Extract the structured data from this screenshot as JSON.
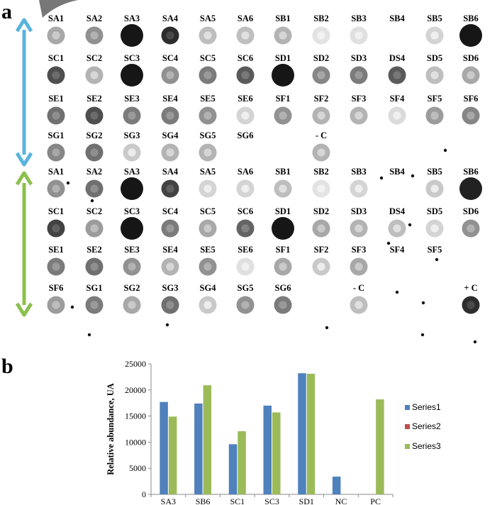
{
  "panels": {
    "a": "a",
    "b": "b"
  },
  "colors": {
    "series1": "#4f81bd",
    "series2": "#c0504d",
    "series3": "#9bbb59",
    "arrow_top": "#5ab4dc",
    "arrow_bottom": "#8cc04e"
  },
  "blot": {
    "blocks": [
      {
        "rows": [
          {
            "dots": [
              {
                "label": "SA1",
                "i": 0.35
              },
              {
                "label": "SA2",
                "i": 0.45
              },
              {
                "label": "SA3",
                "i": 1.0
              },
              {
                "label": "SA4",
                "i": 0.9
              },
              {
                "label": "SA5",
                "i": 0.25
              },
              {
                "label": "SA6",
                "i": 0.25
              },
              {
                "label": "SB1",
                "i": 0.3
              },
              {
                "label": "SB2",
                "i": 0.08
              },
              {
                "label": "SB3",
                "i": 0.1
              },
              {
                "label": "SB4",
                "i": 0.0
              },
              {
                "label": "SB5",
                "i": 0.15
              },
              {
                "label": "SB6",
                "i": 1.0
              }
            ]
          },
          {
            "dots": [
              {
                "label": "SC1",
                "i": 0.75
              },
              {
                "label": "SC2",
                "i": 0.3
              },
              {
                "label": "SC3",
                "i": 1.0
              },
              {
                "label": "SC4",
                "i": 0.45
              },
              {
                "label": "SC5",
                "i": 0.55
              },
              {
                "label": "SC6",
                "i": 0.7
              },
              {
                "label": "SD1",
                "i": 1.0
              },
              {
                "label": "SD2",
                "i": 0.5
              },
              {
                "label": "SD3",
                "i": 0.55
              },
              {
                "label": "DS4",
                "i": 0.7
              },
              {
                "label": "SD5",
                "i": 0.25
              },
              {
                "label": "SD6",
                "i": 0.35
              }
            ]
          },
          {
            "dots": [
              {
                "label": "SE1",
                "i": 0.6
              },
              {
                "label": "SE2",
                "i": 0.75
              },
              {
                "label": "SE3",
                "i": 0.55
              },
              {
                "label": "SE4",
                "i": 0.55
              },
              {
                "label": "SE5",
                "i": 0.45
              },
              {
                "label": "SE6",
                "i": 0.15
              },
              {
                "label": "SF1",
                "i": 0.45
              },
              {
                "label": "SF2",
                "i": 0.3
              },
              {
                "label": "SF3",
                "i": 0.3
              },
              {
                "label": "SF4",
                "i": 0.12
              },
              {
                "label": "SF5",
                "i": 0.4
              },
              {
                "label": "SF6",
                "i": 0.5
              }
            ]
          },
          {
            "dots": [
              {
                "label": "SG1",
                "i": 0.5
              },
              {
                "label": "SG2",
                "i": 0.6
              },
              {
                "label": "SG3",
                "i": 0.2
              },
              {
                "label": "SG4",
                "i": 0.3
              },
              {
                "label": "SG5",
                "i": 0.3
              },
              {
                "label": "SG6",
                "i": 0.0
              },
              {
                "label": "",
                "i": 0.0
              },
              {
                "label": "- C",
                "i": 0.3
              },
              {
                "label": "",
                "i": 0.0
              },
              {
                "label": "",
                "i": 0.0
              },
              {
                "label": "",
                "i": 0.0
              },
              {
                "label": "",
                "i": 0.0
              }
            ]
          }
        ]
      },
      {
        "rows": [
          {
            "dots": [
              {
                "label": "SA1",
                "i": 0.45
              },
              {
                "label": "SA2",
                "i": 0.6
              },
              {
                "label": "SA3",
                "i": 1.0
              },
              {
                "label": "SA4",
                "i": 0.8
              },
              {
                "label": "SA5",
                "i": 0.15
              },
              {
                "label": "SA6",
                "i": 0.15
              },
              {
                "label": "SB1",
                "i": 0.25
              },
              {
                "label": "SB2",
                "i": 0.08
              },
              {
                "label": "SB3",
                "i": 0.15
              },
              {
                "label": "SB4",
                "i": 0.0
              },
              {
                "label": "SB5",
                "i": 0.2
              },
              {
                "label": "SB6",
                "i": 0.95
              }
            ]
          },
          {
            "dots": [
              {
                "label": "SC1",
                "i": 0.8
              },
              {
                "label": "SC2",
                "i": 0.4
              },
              {
                "label": "SC3",
                "i": 1.0
              },
              {
                "label": "SC4",
                "i": 0.55
              },
              {
                "label": "SC5",
                "i": 0.35
              },
              {
                "label": "SC6",
                "i": 0.65
              },
              {
                "label": "SD1",
                "i": 1.0
              },
              {
                "label": "SD2",
                "i": 0.35
              },
              {
                "label": "SD3",
                "i": 0.3
              },
              {
                "label": "DS4",
                "i": 0.25
              },
              {
                "label": "SD5",
                "i": 0.15
              },
              {
                "label": "SD6",
                "i": 0.45
              }
            ]
          },
          {
            "dots": [
              {
                "label": "SE1",
                "i": 0.55
              },
              {
                "label": "SE2",
                "i": 0.6
              },
              {
                "label": "SE3",
                "i": 0.45
              },
              {
                "label": "SE4",
                "i": 0.3
              },
              {
                "label": "SE5",
                "i": 0.45
              },
              {
                "label": "SE6",
                "i": 0.1
              },
              {
                "label": "SF1",
                "i": 0.35
              },
              {
                "label": "SF2",
                "i": 0.2
              },
              {
                "label": "SF3",
                "i": 0.35
              },
              {
                "label": "SF4",
                "i": 0.0
              },
              {
                "label": "SF5",
                "i": 0.0
              },
              {
                "label": "",
                "i": 0.0
              }
            ]
          },
          {
            "dots": [
              {
                "label": "SF6",
                "i": 0.4
              },
              {
                "label": "SG1",
                "i": 0.55
              },
              {
                "label": "SG2",
                "i": 0.35
              },
              {
                "label": "SG3",
                "i": 0.6
              },
              {
                "label": "SG4",
                "i": 0.2
              },
              {
                "label": "SG5",
                "i": 0.45
              },
              {
                "label": "SG6",
                "i": 0.55
              },
              {
                "label": "",
                "i": 0.0
              },
              {
                "label": "- C",
                "i": 0.25
              },
              {
                "label": "",
                "i": 0.0
              },
              {
                "label": "",
                "i": 0.0
              },
              {
                "label": "+ C",
                "i": 0.9
              }
            ]
          }
        ]
      }
    ]
  },
  "chart_data": {
    "type": "bar",
    "title": "",
    "xlabel": "",
    "ylabel": "Relative abundance, UA",
    "ylim": [
      0,
      25000
    ],
    "yticks": [
      0,
      5000,
      10000,
      15000,
      20000,
      25000
    ],
    "categories": [
      "SA3",
      "SB6",
      "SC1",
      "SC3",
      "SD1",
      "NC",
      "PC"
    ],
    "series": [
      {
        "name": "Series1",
        "values": [
          17700,
          17400,
          9600,
          17000,
          23200,
          3400,
          0
        ]
      },
      {
        "name": "Series2",
        "values": [
          0,
          0,
          0,
          0,
          0,
          0,
          0
        ]
      },
      {
        "name": "Series3",
        "values": [
          14900,
          20900,
          12100,
          15700,
          23100,
          0,
          18200
        ]
      }
    ],
    "grid": false,
    "legend": "right"
  }
}
